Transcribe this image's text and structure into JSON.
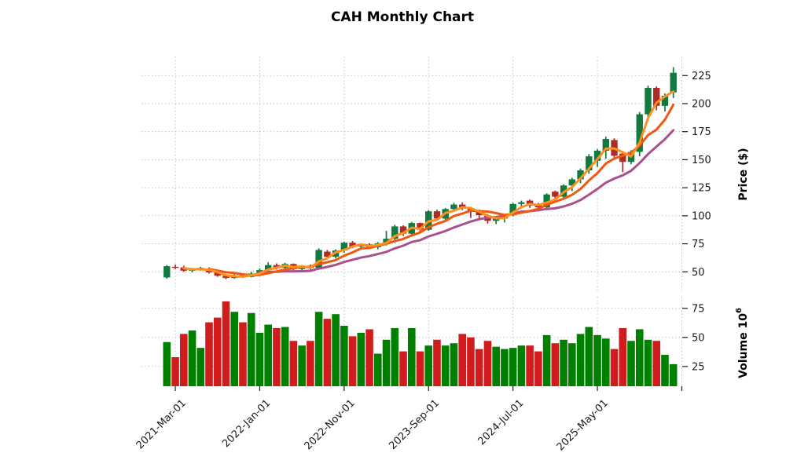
{
  "title": "CAH Monthly Chart",
  "chart_data": {
    "type": "candlestick",
    "title": "CAH Monthly Chart",
    "ylabel": "Price ($)",
    "ylabel_volume_base": "Volume  10",
    "ylabel_volume_exp": "6",
    "volume_unit": "millions",
    "price_ticks": [
      50,
      75,
      100,
      125,
      150,
      175,
      200,
      225
    ],
    "volume_ticks": [
      25,
      50,
      75
    ],
    "price_ylim": [
      32,
      242
    ],
    "volume_ylim": [
      8,
      85
    ],
    "grid": true,
    "x_ticks": [
      {
        "index": 1,
        "label": "2021-Mar-01"
      },
      {
        "index": 11,
        "label": "2022-Jan-01"
      },
      {
        "index": 21,
        "label": "2022-Nov-01"
      },
      {
        "index": 31,
        "label": "2023-Sep-01"
      },
      {
        "index": 41,
        "label": "2024-Jul-01"
      },
      {
        "index": 51,
        "label": "2025-May-01"
      },
      {
        "index": 61,
        "label": ""
      }
    ],
    "mav": {
      "periods": [
        3,
        6,
        12
      ],
      "colors": [
        "#ff8f1f",
        "#f0570f",
        "#a9518d"
      ]
    },
    "colors": {
      "candle_up": "#127a3f",
      "candle_down": "#ae2c26",
      "volume_up": "#008000",
      "volume_down": "#d01c1c",
      "grid": "#bcbcbc"
    },
    "dates": [
      "2021-02",
      "2021-03",
      "2021-04",
      "2021-05",
      "2021-06",
      "2021-07",
      "2021-08",
      "2021-09",
      "2021-10",
      "2021-11",
      "2021-12",
      "2022-01",
      "2022-02",
      "2022-03",
      "2022-04",
      "2022-05",
      "2022-06",
      "2022-07",
      "2022-08",
      "2022-09",
      "2022-10",
      "2022-11",
      "2022-12",
      "2023-01",
      "2023-02",
      "2023-03",
      "2023-04",
      "2023-05",
      "2023-06",
      "2023-07",
      "2023-08",
      "2023-09",
      "2023-10",
      "2023-11",
      "2023-12",
      "2024-01",
      "2024-02",
      "2024-03",
      "2024-04",
      "2024-05",
      "2024-06",
      "2024-07",
      "2024-08",
      "2024-09",
      "2024-10",
      "2024-11",
      "2024-12",
      "2025-01",
      "2025-02",
      "2025-03",
      "2025-04",
      "2025-05",
      "2025-06",
      "2025-07",
      "2025-08",
      "2025-09",
      "2025-10",
      "2025-11",
      "2025-12",
      "2026-01",
      "2026-02"
    ],
    "open": [
      45.0,
      54.5,
      54.0,
      51.0,
      52.5,
      53.0,
      49.5,
      46.5,
      44.5,
      47.0,
      45.5,
      48.5,
      51.5,
      56.0,
      53.5,
      57.0,
      52.5,
      55.0,
      53.5,
      68.0,
      63.5,
      69.0,
      76.0,
      72.5,
      74.5,
      72.0,
      75.5,
      79.5,
      90.5,
      84.0,
      93.5,
      87.5,
      104.0,
      97.5,
      106.0,
      110.0,
      106.5,
      104.0,
      100.5,
      95.5,
      97.5,
      100.5,
      110.5,
      113.5,
      110.0,
      107.5,
      121.5,
      117.0,
      127.0,
      132.5,
      140.5,
      149.0,
      158.0,
      167.5,
      155.5,
      148.0,
      157.0,
      190.5,
      214.0,
      198.0,
      210.0
    ],
    "high": [
      56.0,
      56.5,
      55.5,
      53.5,
      54.5,
      54.0,
      50.5,
      48.0,
      48.0,
      48.0,
      50.0,
      53.0,
      58.5,
      57.5,
      58.0,
      57.5,
      56.0,
      56.5,
      71.0,
      69.5,
      70.0,
      77.0,
      77.5,
      75.5,
      75.5,
      76.5,
      86.5,
      92.0,
      91.5,
      94.5,
      94.0,
      105.0,
      105.5,
      107.0,
      111.5,
      112.0,
      108.0,
      105.5,
      101.5,
      99.0,
      101.5,
      111.5,
      113.5,
      114.5,
      111.5,
      120.0,
      122.5,
      128.0,
      134.0,
      142.0,
      155.0,
      159.5,
      170.5,
      169.0,
      157.5,
      158.5,
      192.5,
      216.0,
      215.5,
      209.0,
      232.5
    ],
    "low": [
      44.0,
      52.5,
      50.0,
      49.5,
      51.0,
      48.5,
      45.5,
      43.5,
      43.8,
      44.5,
      45.0,
      47.5,
      50.5,
      52.0,
      53.0,
      51.0,
      50.5,
      52.0,
      53.0,
      61.5,
      62.0,
      67.0,
      71.0,
      70.5,
      70.5,
      70.0,
      73.5,
      76.0,
      82.0,
      82.5,
      85.5,
      86.5,
      95.5,
      96.0,
      104.0,
      105.0,
      98.0,
      97.5,
      93.0,
      92.5,
      94.0,
      99.5,
      107.5,
      107.0,
      105.5,
      106.5,
      115.5,
      116.0,
      122.0,
      129.0,
      137.5,
      143.5,
      151.0,
      150.0,
      139.0,
      146.0,
      153.0,
      188.0,
      194.0,
      193.0,
      205.0
    ],
    "close": [
      55.0,
      53.5,
      51.0,
      52.5,
      53.5,
      49.5,
      46.5,
      44.5,
      47.0,
      45.5,
      48.5,
      51.5,
      56.0,
      53.5,
      57.0,
      52.5,
      55.0,
      53.5,
      69.5,
      63.5,
      69.0,
      76.0,
      72.5,
      74.5,
      72.0,
      75.5,
      79.5,
      90.5,
      84.0,
      93.5,
      87.5,
      104.0,
      97.5,
      106.0,
      110.0,
      106.5,
      104.0,
      100.5,
      95.5,
      97.5,
      100.5,
      110.5,
      112.0,
      109.0,
      107.5,
      119.0,
      117.0,
      127.0,
      132.5,
      140.5,
      153.0,
      158.0,
      168.5,
      153.5,
      148.0,
      157.0,
      190.5,
      214.0,
      198.0,
      207.0,
      227.5
    ],
    "volume": [
      46,
      33,
      53,
      56,
      41,
      63,
      67,
      81,
      72,
      63,
      71,
      54,
      61,
      58,
      59,
      47,
      43,
      47,
      72,
      66,
      70,
      60,
      51,
      54,
      57,
      36,
      48,
      58,
      38,
      58,
      38,
      43,
      48,
      43,
      45,
      53,
      50,
      40,
      47,
      42,
      40,
      41,
      43,
      43,
      38,
      52,
      45,
      48,
      45,
      53,
      59,
      52,
      49,
      40,
      58,
      47,
      57,
      48,
      47,
      35,
      27
    ]
  }
}
